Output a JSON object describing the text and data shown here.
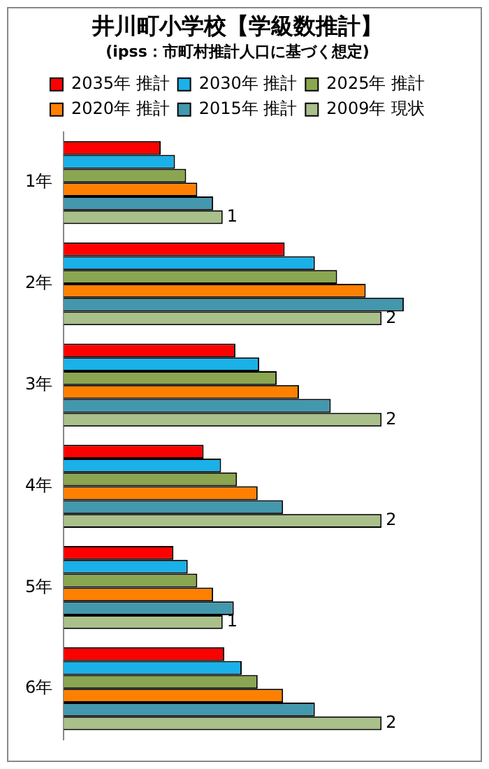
{
  "chart_data": {
    "type": "bar",
    "orientation": "horizontal",
    "tick_labels": "y",
    "title": "井川町小学校【学級数推計】",
    "subtitle": "(ipss：市町村推計人口に基づく想定)",
    "categories": [
      "1年",
      "2年",
      "3年",
      "4年",
      "5年",
      "6年"
    ],
    "series": [
      {
        "name": "2035年 推計",
        "color": "#ff0000",
        "values": [
          0.61,
          1.39,
          1.08,
          0.88,
          0.69,
          1.01
        ]
      },
      {
        "name": "2030年 推計",
        "color": "#1ab0e8",
        "values": [
          0.7,
          1.58,
          1.23,
          0.99,
          0.78,
          1.12
        ]
      },
      {
        "name": "2025年 推計",
        "color": "#8aa650",
        "values": [
          0.77,
          1.72,
          1.34,
          1.09,
          0.84,
          1.22
        ]
      },
      {
        "name": "2020年 推計",
        "color": "#ff8000",
        "values": [
          0.84,
          1.9,
          1.48,
          1.22,
          0.94,
          1.38
        ]
      },
      {
        "name": "2015年 推計",
        "color": "#4398ad",
        "values": [
          0.94,
          2.14,
          1.68,
          1.38,
          1.07,
          1.58
        ]
      },
      {
        "name": "2009年 現状",
        "color": "#a9c08a",
        "values": [
          1,
          2,
          2,
          2,
          1,
          2
        ],
        "value_labels": [
          "1",
          "2",
          "2",
          "2",
          "1",
          "2"
        ]
      }
    ],
    "legend": "top",
    "grid": false
  }
}
